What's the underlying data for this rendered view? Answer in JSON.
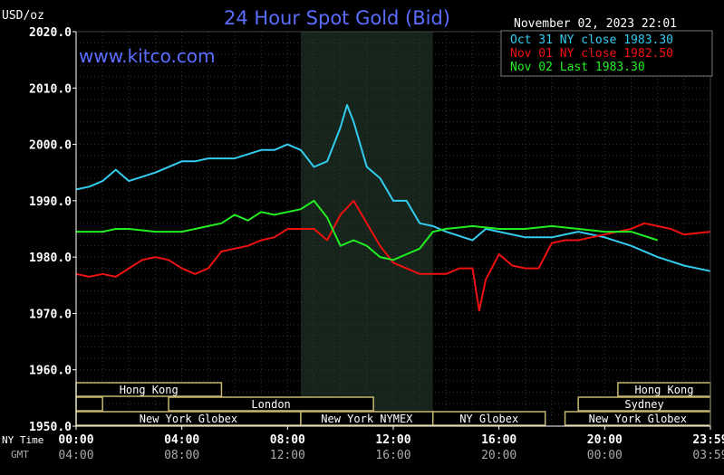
{
  "chart_data": {
    "type": "line",
    "title": "24 Hour Spot Gold (Bid)",
    "website": "www.kitco.com",
    "datetime": "November 02, 2023 22:01",
    "yunit": "USD/oz",
    "ylim": [
      1950,
      2020
    ],
    "yticks": [
      {
        "value": 2020,
        "label": "2020.0"
      },
      {
        "value": 2010,
        "label": "2010.0"
      },
      {
        "value": 2000,
        "label": "2000.0"
      },
      {
        "value": 1990,
        "label": "1990.0"
      },
      {
        "value": 1980,
        "label": "1980.0"
      },
      {
        "value": 1970,
        "label": "1970.0"
      },
      {
        "value": 1960,
        "label": "1960.0"
      },
      {
        "value": 1950,
        "label": "1950.0"
      }
    ],
    "xlim": [
      0,
      24
    ],
    "xticks": [
      {
        "hour": 0,
        "ny": "00:00",
        "gmt": "04:00"
      },
      {
        "hour": 4,
        "ny": "04:00",
        "gmt": "08:00"
      },
      {
        "hour": 8,
        "ny": "08:00",
        "gmt": "12:00"
      },
      {
        "hour": 12,
        "ny": "12:00",
        "gmt": "16:00"
      },
      {
        "hour": 16,
        "ny": "16:00",
        "gmt": "20:00"
      },
      {
        "hour": 20,
        "ny": "20:00",
        "gmt": "00:00"
      },
      {
        "hour": 24,
        "ny": "23:59",
        "gmt": "03:59"
      }
    ],
    "x_row_labels": {
      "ny": "NY Time",
      "gmt": "GMT"
    },
    "highlight_hours": [
      8.5,
      13.5
    ],
    "legend_position": "top-right",
    "legend": [
      {
        "label": "Oct 31 NY close 1983.30",
        "color": "#33ccee"
      },
      {
        "label": "Nov 01 NY close 1982.50",
        "color": "#ee1111"
      },
      {
        "label": "Nov 02 Last 1983.30",
        "color": "#22ee22"
      }
    ],
    "series": [
      {
        "name": "Oct 31 NY close 1983.30",
        "color": "#33ccee",
        "x": [
          0,
          0.5,
          1,
          1.5,
          2,
          3,
          4,
          4.5,
          5,
          6,
          7,
          7.5,
          8,
          8.5,
          9,
          9.5,
          10,
          10.25,
          10.5,
          11,
          11.5,
          12,
          12.5,
          13,
          13.5,
          14,
          15,
          15.5,
          16,
          17,
          18,
          19,
          19.5,
          20,
          21,
          22,
          23,
          24
        ],
        "y": [
          1992,
          1992.5,
          1993.5,
          1995.5,
          1993.5,
          1995,
          1997,
          1997,
          1997.5,
          1997.5,
          1999,
          1999,
          2000,
          1999,
          1996,
          1997,
          2003,
          2007,
          2004,
          1996,
          1994,
          1990,
          1990,
          1986,
          1985.5,
          1984.5,
          1983,
          1985,
          1984.5,
          1983.5,
          1983.5,
          1984.5,
          1984,
          1983.5,
          1982,
          1980,
          1978.5,
          1977.5
        ]
      },
      {
        "name": "Nov 01 NY close 1982.50",
        "color": "#ee1111",
        "x": [
          0,
          0.5,
          1,
          1.5,
          2,
          2.5,
          3,
          3.5,
          4,
          4.5,
          5,
          5.5,
          6,
          6.5,
          7,
          7.5,
          8,
          8.5,
          9,
          9.5,
          10,
          10.5,
          11,
          11.5,
          12,
          12.5,
          13,
          13.5,
          14,
          14.5,
          15,
          15.25,
          15.5,
          16,
          16.5,
          17,
          17.5,
          18,
          18.5,
          19,
          19.5,
          20,
          21,
          21.5,
          22,
          22.5,
          23,
          24
        ],
        "y": [
          1977,
          1976.5,
          1977,
          1976.5,
          1978,
          1979.5,
          1980,
          1979.5,
          1978,
          1977,
          1978,
          1981,
          1981.5,
          1982,
          1983,
          1983.5,
          1985,
          1985,
          1985,
          1983,
          1987.5,
          1990,
          1986,
          1982,
          1979,
          1978,
          1977,
          1977,
          1977,
          1978,
          1978,
          1970.5,
          1976,
          1980.5,
          1978.5,
          1978,
          1978,
          1982.5,
          1983,
          1983,
          1983.5,
          1984,
          1985,
          1986,
          1985.5,
          1985,
          1984,
          1984.5
        ]
      },
      {
        "name": "Nov 02 Last 1983.30",
        "color": "#22ee22",
        "x": [
          0,
          0.5,
          1,
          1.5,
          2,
          3,
          4,
          4.5,
          5,
          5.5,
          6,
          6.5,
          7,
          7.5,
          8,
          8.5,
          9,
          9.5,
          10,
          10.5,
          11,
          11.5,
          12,
          12.5,
          13,
          13.5,
          14,
          15,
          16,
          17,
          18,
          19,
          20,
          21,
          22
        ],
        "y": [
          1984.5,
          1984.5,
          1984.5,
          1985,
          1985,
          1984.5,
          1984.5,
          1985,
          1985.5,
          1986,
          1987.5,
          1986.5,
          1988,
          1987.5,
          1988,
          1988.5,
          1990,
          1987,
          1982,
          1983,
          1982,
          1980,
          1979.5,
          1980.5,
          1981.5,
          1984.5,
          1985,
          1985.5,
          1985,
          1985,
          1985.5,
          1985,
          1984.5,
          1984.5,
          1983
        ]
      }
    ],
    "market_bars": [
      {
        "label": "Hong Kong",
        "start": 0,
        "end": 5.5,
        "row": 0
      },
      {
        "label": "Hong Kong",
        "start": 20.5,
        "end": 24,
        "row": 0
      },
      {
        "label": "",
        "start": 0,
        "end": 1,
        "row": 1
      },
      {
        "label": "London",
        "start": 3.5,
        "end": 11.25,
        "row": 1
      },
      {
        "label": "Sydney",
        "start": 19,
        "end": 24,
        "row": 1
      },
      {
        "label": "New York Globex",
        "start": 0,
        "end": 8.5,
        "row": 2
      },
      {
        "label": "New York NYMEX",
        "start": 8.5,
        "end": 13.5,
        "row": 2
      },
      {
        "label": "NY Globex",
        "start": 13.5,
        "end": 17.75,
        "row": 2
      },
      {
        "label": "New York Globex",
        "start": 18.5,
        "end": 24,
        "row": 2
      }
    ]
  }
}
